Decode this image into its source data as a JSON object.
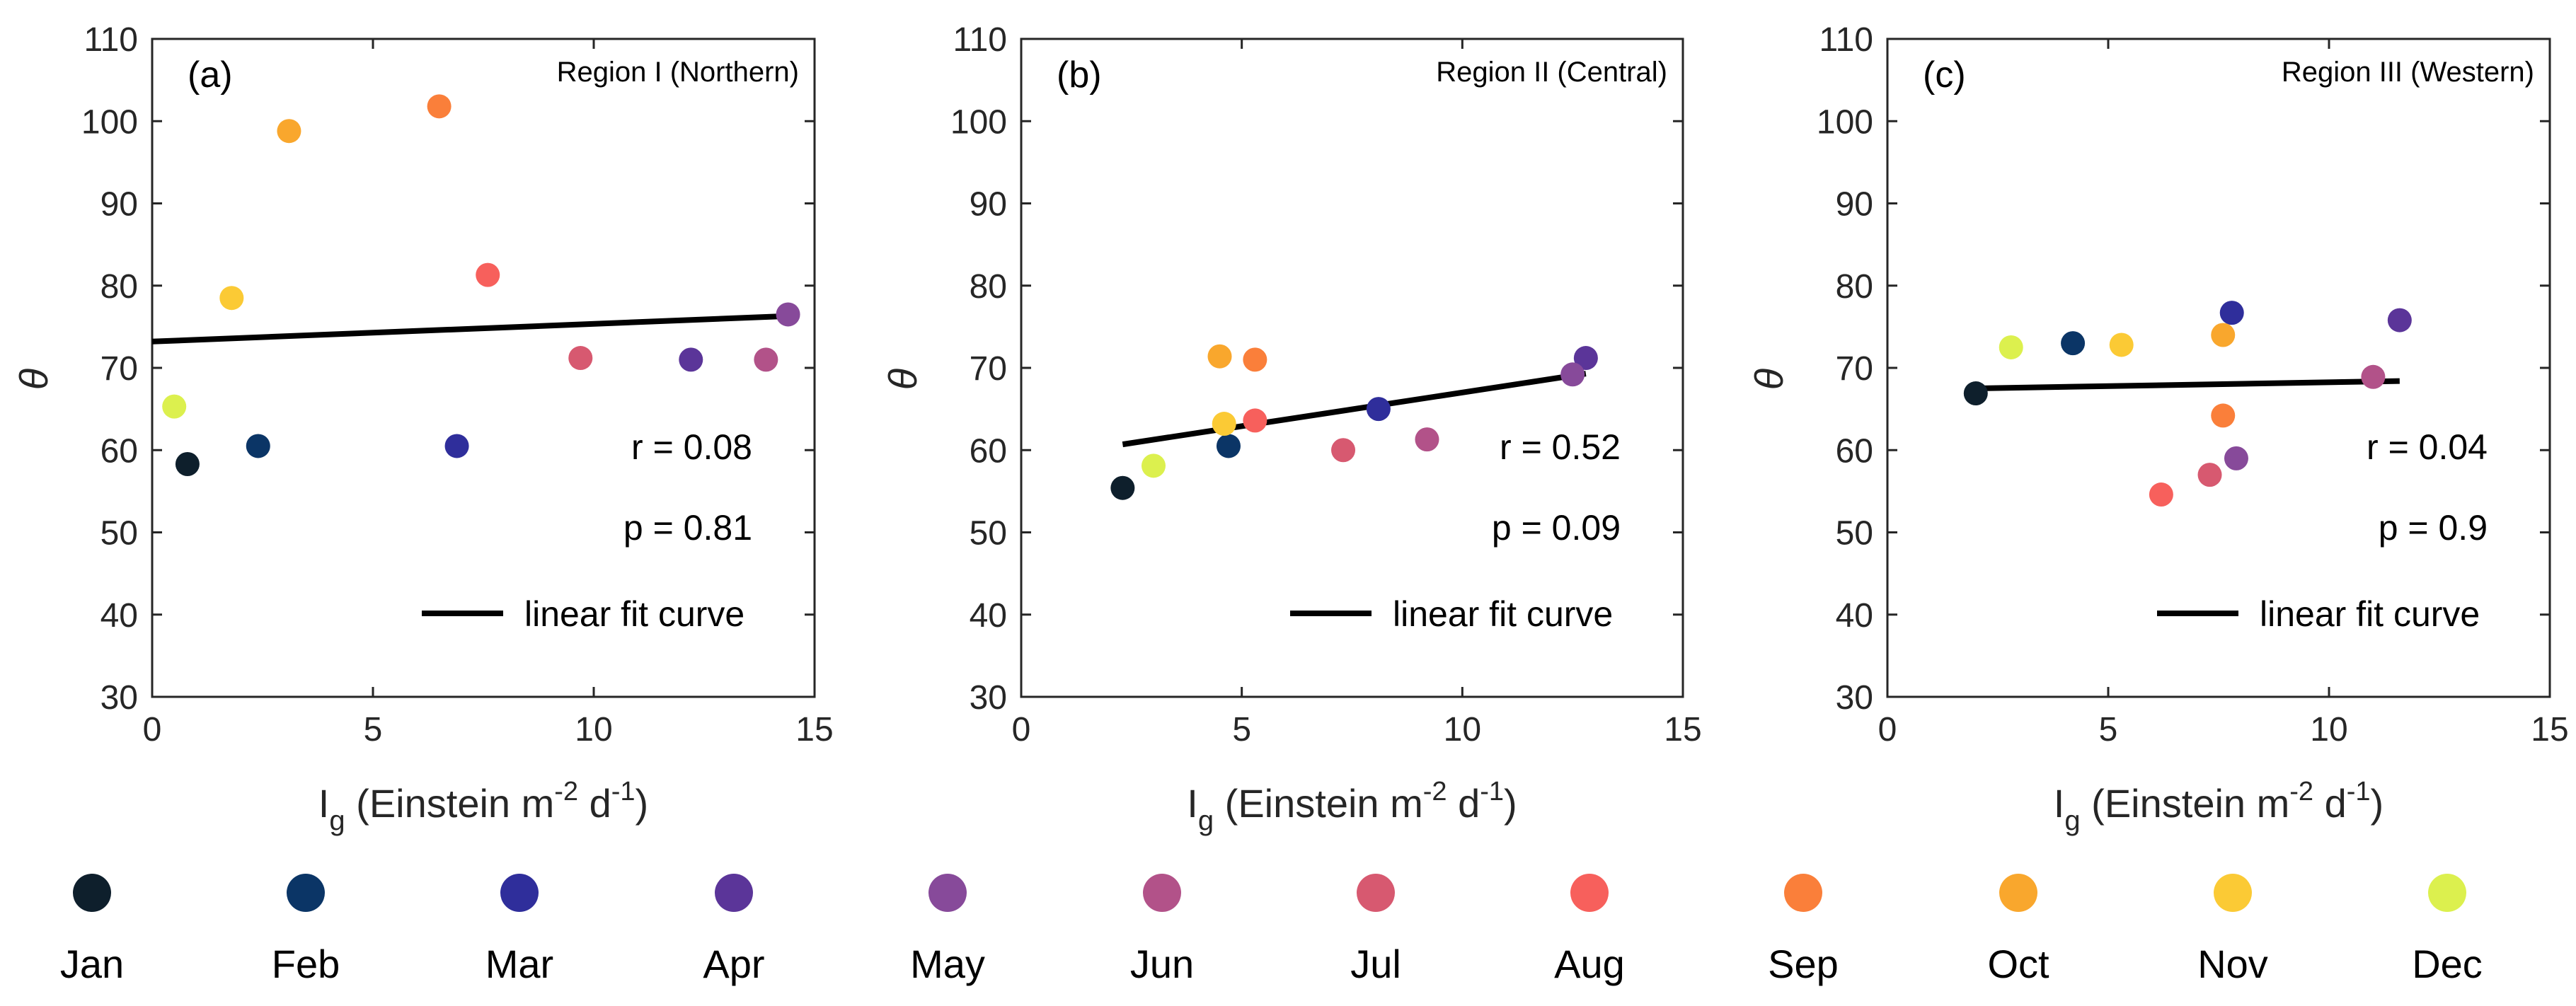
{
  "months": [
    "Jan",
    "Feb",
    "Mar",
    "Apr",
    "May",
    "Jun",
    "Jul",
    "Aug",
    "Sep",
    "Oct",
    "Nov",
    "Dec"
  ],
  "month_colors": [
    "#0e1f2c",
    "#0b3566",
    "#2f2e9b",
    "#5b3599",
    "#874a9a",
    "#b25289",
    "#d75970",
    "#f7605c",
    "#fa7f3a",
    "#f9a72d",
    "#fbca35",
    "#dcf04e"
  ],
  "chart_data": [
    {
      "type": "scatter",
      "panel_label": "(a)",
      "title": "Region I (Northern)",
      "xlabel_main": "I",
      "xlabel_sub": "g",
      "xlabel_rest": " (Einstein m",
      "xlabel_exp": "-2",
      "xlabel_rest2": " d",
      "xlabel_exp2": "-1",
      "xlabel_close": ")",
      "ylabel": "θ",
      "xlim": [
        0,
        15
      ],
      "ylim": [
        30,
        110
      ],
      "xticks": [
        "0",
        "5",
        "10",
        "15"
      ],
      "yticks": [
        "30",
        "40",
        "50",
        "60",
        "70",
        "80",
        "90",
        "100",
        "110"
      ],
      "points": [
        {
          "month": "Jan",
          "x": 0.8,
          "y": 58.3
        },
        {
          "month": "Feb",
          "x": 2.4,
          "y": 60.5
        },
        {
          "month": "Mar",
          "x": 6.9,
          "y": 60.5
        },
        {
          "month": "Apr",
          "x": 12.2,
          "y": 71.0
        },
        {
          "month": "May",
          "x": 14.4,
          "y": 76.5
        },
        {
          "month": "Jun",
          "x": 13.9,
          "y": 71.0
        },
        {
          "month": "Jul",
          "x": 9.7,
          "y": 71.2
        },
        {
          "month": "Aug",
          "x": 7.6,
          "y": 81.3
        },
        {
          "month": "Sep",
          "x": 6.5,
          "y": 101.8
        },
        {
          "month": "Oct",
          "x": 3.1,
          "y": 98.8
        },
        {
          "month": "Nov",
          "x": 1.8,
          "y": 78.5
        },
        {
          "month": "Dec",
          "x": 0.5,
          "y": 65.3
        }
      ],
      "fit": {
        "x": [
          0,
          14.4
        ],
        "y": [
          73.2,
          76.3
        ]
      },
      "r_text": "r = 0.08",
      "p_text": "p = 0.81",
      "fit_legend": "linear fit curve"
    },
    {
      "type": "scatter",
      "panel_label": "(b)",
      "title": "Region II (Central)",
      "xlabel_main": "I",
      "xlabel_sub": "g",
      "xlabel_rest": " (Einstein m",
      "xlabel_exp": "-2",
      "xlabel_rest2": " d",
      "xlabel_exp2": "-1",
      "xlabel_close": ")",
      "ylabel": "θ",
      "xlim": [
        0,
        15
      ],
      "ylim": [
        30,
        110
      ],
      "xticks": [
        "0",
        "5",
        "10",
        "15"
      ],
      "yticks": [
        "30",
        "40",
        "50",
        "60",
        "70",
        "80",
        "90",
        "100",
        "110"
      ],
      "points": [
        {
          "month": "Jan",
          "x": 2.3,
          "y": 55.4
        },
        {
          "month": "Feb",
          "x": 4.7,
          "y": 60.5
        },
        {
          "month": "Mar",
          "x": 8.1,
          "y": 65.0
        },
        {
          "month": "Apr",
          "x": 12.8,
          "y": 71.2
        },
        {
          "month": "May",
          "x": 12.5,
          "y": 69.2
        },
        {
          "month": "Jun",
          "x": 9.2,
          "y": 61.3
        },
        {
          "month": "Jul",
          "x": 7.3,
          "y": 60.0
        },
        {
          "month": "Aug",
          "x": 5.3,
          "y": 63.6
        },
        {
          "month": "Sep",
          "x": 5.3,
          "y": 71.0
        },
        {
          "month": "Oct",
          "x": 4.5,
          "y": 71.4
        },
        {
          "month": "Nov",
          "x": 4.6,
          "y": 63.2
        },
        {
          "month": "Dec",
          "x": 3.0,
          "y": 58.1
        }
      ],
      "fit": {
        "x": [
          2.3,
          12.8
        ],
        "y": [
          60.7,
          69.3
        ]
      },
      "r_text": "r = 0.52",
      "p_text": "p = 0.09",
      "fit_legend": "linear fit curve"
    },
    {
      "type": "scatter",
      "panel_label": "(c)",
      "title": "Region III (Western)",
      "xlabel_main": "I",
      "xlabel_sub": "g",
      "xlabel_rest": " (Einstein m",
      "xlabel_exp": "-2",
      "xlabel_rest2": " d",
      "xlabel_exp2": "-1",
      "xlabel_close": ")",
      "ylabel": "θ",
      "xlim": [
        0,
        15
      ],
      "ylim": [
        30,
        110
      ],
      "xticks": [
        "0",
        "5",
        "10",
        "15"
      ],
      "yticks": [
        "30",
        "40",
        "50",
        "60",
        "70",
        "80",
        "90",
        "100",
        "110"
      ],
      "points": [
        {
          "month": "Jan",
          "x": 2.0,
          "y": 66.9
        },
        {
          "month": "Feb",
          "x": 4.2,
          "y": 73.0
        },
        {
          "month": "Mar",
          "x": 7.8,
          "y": 76.7
        },
        {
          "month": "Apr",
          "x": 11.6,
          "y": 75.8
        },
        {
          "month": "May",
          "x": 7.9,
          "y": 59.0
        },
        {
          "month": "Jun",
          "x": 11.0,
          "y": 68.9
        },
        {
          "month": "Jul",
          "x": 7.3,
          "y": 57.0
        },
        {
          "month": "Aug",
          "x": 6.2,
          "y": 54.6
        },
        {
          "month": "Sep",
          "x": 7.6,
          "y": 64.2
        },
        {
          "month": "Oct",
          "x": 7.6,
          "y": 74.0
        },
        {
          "month": "Nov",
          "x": 5.3,
          "y": 72.8
        },
        {
          "month": "Dec",
          "x": 2.8,
          "y": 72.5
        }
      ],
      "fit": {
        "x": [
          2.0,
          11.6
        ],
        "y": [
          67.5,
          68.4
        ]
      },
      "r_text": "r = 0.04",
      "p_text": "p = 0.9",
      "fit_legend": "linear fit curve"
    }
  ]
}
